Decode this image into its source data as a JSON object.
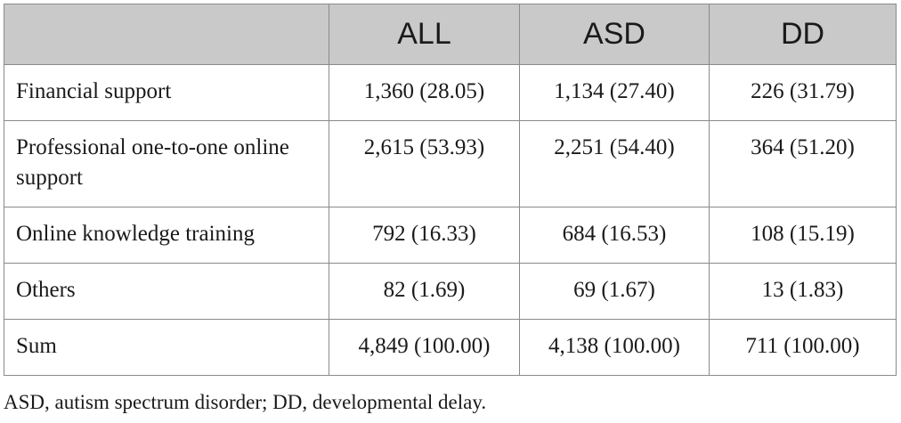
{
  "table": {
    "headers": [
      "",
      "ALL",
      "ASD",
      "DD"
    ],
    "rows": [
      {
        "label": "Financial support",
        "all": "1,360 (28.05)",
        "asd": "1,134 (27.40)",
        "dd": "226 (31.79)"
      },
      {
        "label": "Professional one-to-one online support",
        "all": "2,615 (53.93)",
        "asd": "2,251 (54.40)",
        "dd": "364 (51.20)"
      },
      {
        "label": "Online knowledge training",
        "all": "792 (16.33)",
        "asd": "684 (16.53)",
        "dd": "108 (15.19)"
      },
      {
        "label": "Others",
        "all": "82 (1.69)",
        "asd": "69 (1.67)",
        "dd": "13 (1.83)"
      },
      {
        "label": "Sum",
        "all": "4,849 (100.00)",
        "asd": "4,138 (100.00)",
        "dd": "711 (100.00)"
      }
    ]
  },
  "footnote": "ASD, autism spectrum disorder; DD, developmental delay."
}
